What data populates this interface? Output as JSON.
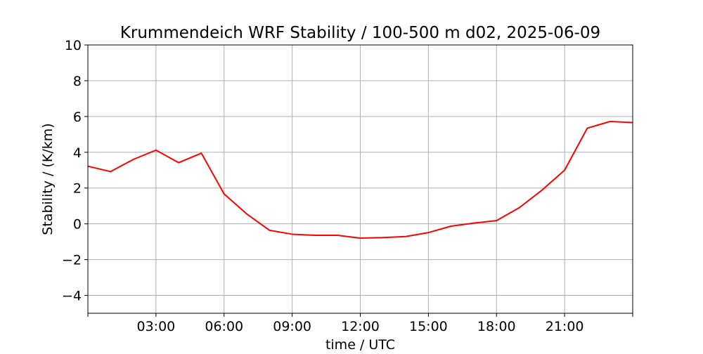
{
  "chart_data": {
    "type": "line",
    "title": "Krummendeich WRF Stability / 100-500 m  d02, 2025-06-09",
    "xlabel": "time / UTC",
    "ylabel": "Stability / (K/km)",
    "xlim": [
      "2025-06-09 00:00",
      "2025-06-10 00:00"
    ],
    "ylim": [
      -5,
      10
    ],
    "x_ticks": [
      "",
      "03:00",
      "06:00",
      "09:00",
      "12:00",
      "15:00",
      "18:00",
      "21:00",
      ""
    ],
    "y_ticks": [
      "−4",
      "−2",
      "0",
      "2",
      "4",
      "6",
      "8",
      "10"
    ],
    "grid": true,
    "series": [
      {
        "color": "#ff0000",
        "x": [
          "00:00",
          "01:00",
          "02:00",
          "03:00",
          "04:00",
          "05:00",
          "06:00",
          "07:00",
          "08:00",
          "09:00",
          "10:00",
          "11:00",
          "12:00",
          "13:00",
          "14:00",
          "15:00",
          "16:00",
          "17:00",
          "18:00",
          "19:00",
          "20:00",
          "21:00",
          "22:00",
          "23:00",
          "24:00"
        ],
        "values": [
          3.22,
          2.92,
          3.6,
          4.12,
          3.42,
          3.95,
          1.67,
          0.55,
          -0.36,
          -0.58,
          -0.64,
          -0.64,
          -0.8,
          -0.77,
          -0.71,
          -0.49,
          -0.13,
          0.04,
          0.18,
          0.9,
          1.88,
          3.0,
          5.35,
          5.72,
          5.66
        ]
      }
    ]
  }
}
